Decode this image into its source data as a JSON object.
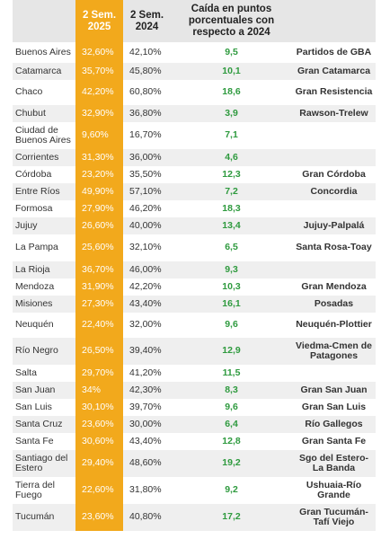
{
  "table": {
    "headers": {
      "province": "",
      "sem2025": "2 Sem. 2025",
      "sem2024": "2 Sem. 2024",
      "drop": "Caída en puntos porcentuales con respecto a 2024",
      "area": ""
    },
    "rows": [
      {
        "province": "Buenos Aires",
        "sem2025": "32,60%",
        "sem2024": "42,10%",
        "drop": "9,5",
        "area": "Partidos de GBA"
      },
      {
        "province": "Catamarca",
        "sem2025": "35,70%",
        "sem2024": "45,80%",
        "drop": "10,1",
        "area": "Gran Catamarca"
      },
      {
        "province": "Chaco",
        "sem2025": "42,20%",
        "sem2024": "60,80%",
        "drop": "18,6",
        "area": "Gran Resistencia"
      },
      {
        "province": "Chubut",
        "sem2025": "32,90%",
        "sem2024": "36,80%",
        "drop": "3,9",
        "area": "Rawson-Trelew"
      },
      {
        "province": "Ciudad de Buenos Aires",
        "sem2025": "9,60%",
        "sem2024": "16,70%",
        "drop": "7,1",
        "area": ""
      },
      {
        "province": "Corrientes",
        "sem2025": "31,30%",
        "sem2024": "36,00%",
        "drop": "4,6",
        "area": ""
      },
      {
        "province": "Córdoba",
        "sem2025": "23,20%",
        "sem2024": "35,50%",
        "drop": "12,3",
        "area": "Gran Córdoba"
      },
      {
        "province": "Entre Ríos",
        "sem2025": "49,90%",
        "sem2024": "57,10%",
        "drop": "7,2",
        "area": "Concordia"
      },
      {
        "province": "Formosa",
        "sem2025": "27,90%",
        "sem2024": "46,20%",
        "drop": "18,3",
        "area": ""
      },
      {
        "province": "Jujuy",
        "sem2025": "26,60%",
        "sem2024": "40,00%",
        "drop": "13,4",
        "area": "Jujuy-Palpalá"
      },
      {
        "province": "La Pampa",
        "sem2025": "25,60%",
        "sem2024": "32,10%",
        "drop": "6,5",
        "area": "Santa Rosa-Toay"
      },
      {
        "province": "La Rioja",
        "sem2025": "36,70%",
        "sem2024": "46,00%",
        "drop": "9,3",
        "area": ""
      },
      {
        "province": "Mendoza",
        "sem2025": "31,90%",
        "sem2024": "42,20%",
        "drop": "10,3",
        "area": "Gran Mendoza"
      },
      {
        "province": "Misiones",
        "sem2025": "27,30%",
        "sem2024": "43,40%",
        "drop": "16,1",
        "area": "Posadas"
      },
      {
        "province": "Neuquén",
        "sem2025": "22,40%",
        "sem2024": "32,00%",
        "drop": "9,6",
        "area": "Neuquén-Plottier"
      },
      {
        "province": "Río Negro",
        "sem2025": "26,50%",
        "sem2024": "39,40%",
        "drop": "12,9",
        "area": "Viedma-Cmen de Patagones"
      },
      {
        "province": "Salta",
        "sem2025": "29,70%",
        "sem2024": "41,20%",
        "drop": "11,5",
        "area": ""
      },
      {
        "province": "San Juan",
        "sem2025": "34%",
        "sem2024": "42,30%",
        "drop": "8,3",
        "area": "Gran San Juan"
      },
      {
        "province": "San Luis",
        "sem2025": "30,10%",
        "sem2024": "39,70%",
        "drop": "9,6",
        "area": "Gran San Luis"
      },
      {
        "province": "Santa Cruz",
        "sem2025": "23,60%",
        "sem2024": "30,00%",
        "drop": "6,4",
        "area": "Río Gallegos"
      },
      {
        "province": "Santa Fe",
        "sem2025": "30,60%",
        "sem2024": "43,40%",
        "drop": "12,8",
        "area": "Gran Santa Fe"
      },
      {
        "province": "Santiago del Estero",
        "sem2025": "29,40%",
        "sem2024": "48,60%",
        "drop": "19,2",
        "area": "Sgo del Estero-La Banda"
      },
      {
        "province": "Tierra del Fuego",
        "sem2025": "22,60%",
        "sem2024": "31,80%",
        "drop": "9,2",
        "area": "Ushuaia-Río Grande"
      },
      {
        "province": "Tucumán",
        "sem2025": "23,60%",
        "sem2024": "40,80%",
        "drop": "17,2",
        "area": "Gran Tucumán-Tafí Viejo"
      }
    ]
  },
  "colors": {
    "highlight": "#f2a91c",
    "drop_text": "#2e9a3e",
    "header_bg": "#e6e6e6",
    "alt_row": "#efefef"
  }
}
